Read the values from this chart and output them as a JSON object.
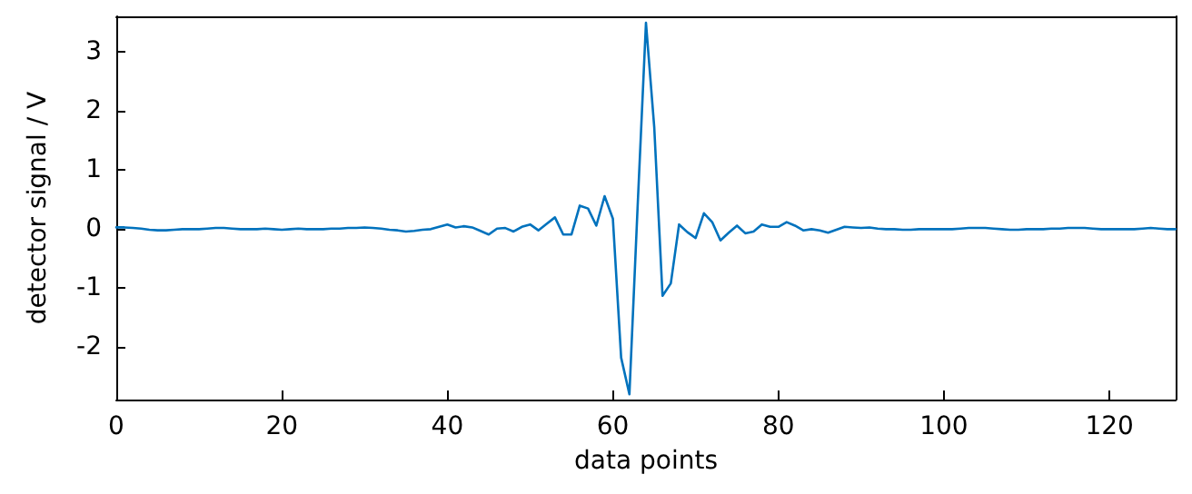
{
  "chart_data": {
    "type": "line",
    "xlabel": "data points",
    "ylabel": "detector signal / V",
    "x": [
      0,
      1,
      2,
      3,
      4,
      5,
      6,
      7,
      8,
      9,
      10,
      11,
      12,
      13,
      14,
      15,
      16,
      17,
      18,
      19,
      20,
      21,
      22,
      23,
      24,
      25,
      26,
      27,
      28,
      29,
      30,
      31,
      32,
      33,
      34,
      35,
      36,
      37,
      38,
      39,
      40,
      41,
      42,
      43,
      44,
      45,
      46,
      47,
      48,
      49,
      50,
      51,
      52,
      53,
      54,
      55,
      56,
      57,
      58,
      59,
      60,
      61,
      62,
      63,
      64,
      65,
      66,
      67,
      68,
      69,
      70,
      71,
      72,
      73,
      74,
      75,
      76,
      77,
      78,
      79,
      80,
      81,
      82,
      83,
      84,
      85,
      86,
      87,
      88,
      89,
      90,
      91,
      92,
      93,
      94,
      95,
      96,
      97,
      98,
      99,
      100,
      101,
      102,
      103,
      104,
      105,
      106,
      107,
      108,
      109,
      110,
      111,
      112,
      113,
      114,
      115,
      116,
      117,
      118,
      119,
      120,
      121,
      122,
      123,
      124,
      125,
      126,
      127,
      128
    ],
    "series": [
      {
        "color": "#0072bd",
        "values": [
          0.02,
          0.02,
          0.01,
          0,
          -0.02,
          -0.03,
          -0.03,
          -0.02,
          -0.01,
          -0.01,
          -0.01,
          0,
          0.01,
          0.01,
          0,
          -0.01,
          -0.01,
          -0.01,
          0,
          -0.01,
          -0.02,
          -0.01,
          0,
          -0.01,
          -0.01,
          -0.01,
          0,
          0,
          0.01,
          0.01,
          0.02,
          0.01,
          0,
          -0.02,
          -0.03,
          -0.05,
          -0.04,
          -0.02,
          -0.01,
          0.03,
          0.07,
          0.02,
          0.04,
          0.02,
          -0.04,
          -0.1,
          0,
          0.01,
          -0.05,
          0.03,
          0.07,
          -0.03,
          0.08,
          0.19,
          -0.1,
          -0.1,
          0.39,
          0.34,
          0.05,
          0.55,
          0.17,
          -2.19,
          -2.81,
          0.4,
          3.49,
          1.72,
          -1.14,
          -0.93,
          0.07,
          -0.06,
          -0.16,
          0.26,
          0.11,
          -0.2,
          -0.07,
          0.05,
          -0.08,
          -0.05,
          0.07,
          0.03,
          0.03,
          0.11,
          0.05,
          -0.03,
          -0.01,
          -0.03,
          -0.07,
          -0.02,
          0.03,
          0.02,
          0.01,
          0.02,
          0,
          -0.01,
          -0.01,
          -0.02,
          -0.02,
          -0.01,
          -0.01,
          -0.01,
          -0.01,
          -0.01,
          0,
          0.01,
          0.01,
          0.01,
          0,
          -0.01,
          -0.02,
          -0.02,
          -0.01,
          -0.01,
          -0.01,
          0,
          0,
          0.01,
          0.01,
          0.01,
          0,
          -0.01,
          -0.01,
          -0.01,
          -0.01,
          -0.01,
          0,
          0.01,
          0,
          -0.01,
          -0.01
        ]
      }
    ],
    "xlim": [
      0,
      128
    ],
    "xticks": [
      0,
      20,
      40,
      60,
      80,
      100,
      120
    ],
    "ylim": [
      -2.9,
      3.6
    ],
    "yticks": [
      -2,
      -1,
      0,
      1,
      2,
      3
    ],
    "grid": false,
    "marker": "none",
    "line_style": "solid"
  }
}
